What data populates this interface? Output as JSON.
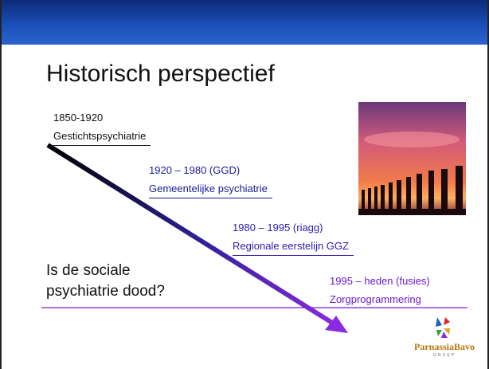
{
  "title": "Historisch perspectief",
  "items": [
    {
      "period": "1850-1920",
      "name": "Gestichtspsychiatrie"
    },
    {
      "period": "1920 – 1980 (GGD)",
      "name": "Gemeentelijke psychiatrie"
    },
    {
      "period": "1980 – 1995 (riagg)",
      "name": "Regionale eerstelijn GGZ"
    },
    {
      "period": "1995 – heden (fusies)",
      "name": "Zorgprogrammering"
    }
  ],
  "question": [
    "Is de sociale",
    "psychiatrie dood?"
  ],
  "logo": {
    "name": "ParnassiaBavo",
    "sub": "GROEP"
  }
}
